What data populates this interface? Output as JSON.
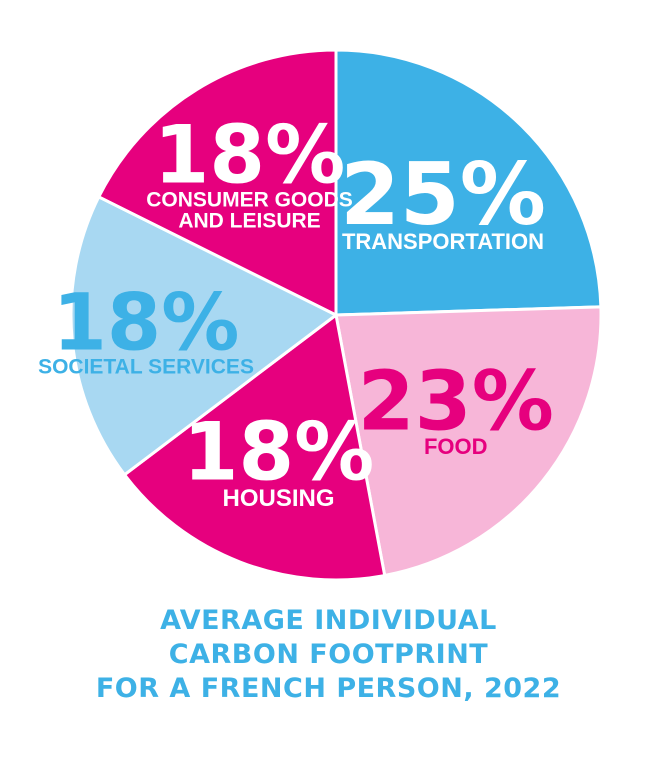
{
  "chart_data": {
    "type": "pie",
    "title_lines": [
      "AVERAGE INDIVIDUAL",
      "CARBON FOOTPRINT",
      "FOR A FRENCH PERSON, 2022"
    ],
    "slices": [
      {
        "label_lines": [
          "TRANSPORTATION"
        ],
        "value": 25,
        "value_label": "25%",
        "color": "#3db1e6",
        "text_color": "#ffffff",
        "stroke": "#ffffff",
        "name": "transportation"
      },
      {
        "label_lines": [
          "FOOD"
        ],
        "value": 23,
        "value_label": "23%",
        "color": "#f7b6d8",
        "text_color": "#e6007e",
        "stroke": "#ffffff",
        "name": "food"
      },
      {
        "label_lines": [
          "HOUSING"
        ],
        "value": 18,
        "value_label": "18%",
        "color": "#e6007e",
        "text_color": "#ffffff",
        "stroke": "#ffffff",
        "name": "housing"
      },
      {
        "label_lines": [
          "SOCIETAL SERVICES"
        ],
        "value": 18,
        "value_label": "18%",
        "color": "#a8d8f2",
        "text_color": "#3db1e6",
        "stroke": "#ffffff",
        "name": "societal-services"
      },
      {
        "label_lines": [
          "CONSUMER GOODS",
          "AND LEISURE"
        ],
        "value": 18,
        "value_label": "18%",
        "color": "#e6007e",
        "text_color": "#ffffff",
        "stroke": "#ffffff",
        "name": "consumer-goods-and-leisure"
      }
    ]
  }
}
